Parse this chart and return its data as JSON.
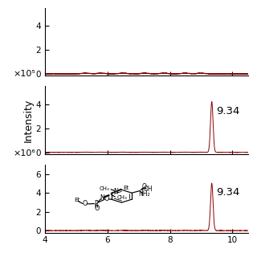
{
  "line_color": "#8B0000",
  "background_color": "#ffffff",
  "ylabel": "Intensity",
  "xlim": [
    4,
    10.5
  ],
  "panel1": {
    "ylim": [
      -0.15,
      5.5
    ],
    "yticks": [
      0,
      2,
      4
    ],
    "noise_level": 0.08,
    "has_peak": false
  },
  "panel2": {
    "ylim": [
      -0.15,
      5.5
    ],
    "yticks": [
      0,
      2,
      4
    ],
    "scale_label": "×10⁵",
    "peak_x": 9.34,
    "peak_y": 4.2,
    "peak_sigma": 0.04,
    "peak_label": "9.34",
    "noise_level": 0.025
  },
  "panel3": {
    "ylim": [
      -0.2,
      7.0
    ],
    "yticks": [
      0,
      2,
      4,
      6
    ],
    "scale_label": "×10⁶",
    "peak_x": 9.34,
    "peak_y": 5.0,
    "peak_sigma": 0.04,
    "peak_label": "9.34",
    "noise_level": 0.04
  },
  "xticks": [
    4,
    6,
    8,
    10
  ]
}
